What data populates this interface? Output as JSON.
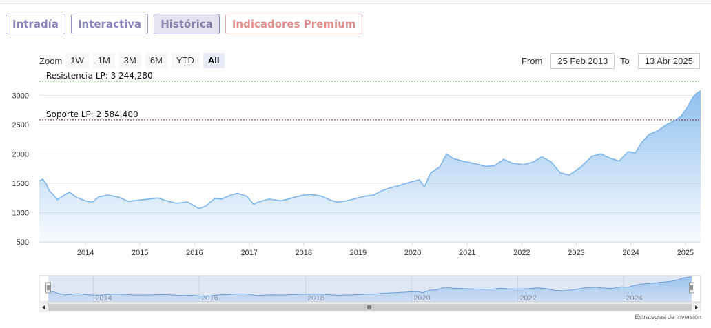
{
  "tabs": [
    {
      "label": "Intradía",
      "active": false
    },
    {
      "label": "Interactiva",
      "active": false
    },
    {
      "label": "Histórica",
      "active": true
    },
    {
      "label": "Indicadores Premium",
      "active": false
    }
  ],
  "zoom": {
    "label": "Zoom",
    "buttons": [
      "1W",
      "1M",
      "3M",
      "6M",
      "YTD",
      "All"
    ],
    "active": "All"
  },
  "range": {
    "from_label": "From",
    "from_value": "25 Feb 2013",
    "to_label": "To",
    "to_value": "13 Abr 2025"
  },
  "credit": "Estrategias de Inversión",
  "colors": {
    "line": "#7cb5ec",
    "resistance": "#2e8b2e",
    "support": "#8b1a1a",
    "tab_accent": "#8a85bb",
    "premium": "#e28e8e"
  },
  "chart_data": {
    "type": "area",
    "ylim": [
      500,
      3300
    ],
    "yticks": [
      500,
      1000,
      1500,
      2000,
      2500,
      3000
    ],
    "xticks": [
      "2014",
      "2015",
      "2016",
      "2017",
      "2018",
      "2019",
      "2020",
      "2021",
      "2022",
      "2023",
      "2024",
      "2025"
    ],
    "navigator_ticks": [
      "2014",
      "2016",
      "2018",
      "2020",
      "2022",
      "2024"
    ],
    "x_start": "2013-02-25",
    "x_end": "2025-04-13",
    "plot_lines": [
      {
        "label": "Resistencia LP: 3 244,280",
        "value": 3244.28
      },
      {
        "label": "Soporte LP: 2 584,400",
        "value": 2584.4
      }
    ],
    "series": [
      {
        "values": [
          [
            "2013-02-25",
            1540
          ],
          [
            "2013-03-20",
            1570
          ],
          [
            "2013-04-15",
            1480
          ],
          [
            "2013-05-01",
            1380
          ],
          [
            "2013-06-01",
            1300
          ],
          [
            "2013-06-25",
            1220
          ],
          [
            "2013-08-01",
            1280
          ],
          [
            "2013-09-15",
            1350
          ],
          [
            "2013-11-01",
            1260
          ],
          [
            "2014-01-01",
            1200
          ],
          [
            "2014-02-15",
            1180
          ],
          [
            "2014-04-01",
            1270
          ],
          [
            "2014-06-01",
            1300
          ],
          [
            "2014-08-15",
            1260
          ],
          [
            "2014-10-15",
            1190
          ],
          [
            "2014-12-15",
            1210
          ],
          [
            "2015-03-01",
            1230
          ],
          [
            "2015-05-01",
            1250
          ],
          [
            "2015-07-01",
            1200
          ],
          [
            "2015-09-01",
            1160
          ],
          [
            "2015-11-15",
            1180
          ],
          [
            "2016-02-01",
            1070
          ],
          [
            "2016-03-15",
            1110
          ],
          [
            "2016-05-15",
            1240
          ],
          [
            "2016-07-01",
            1230
          ],
          [
            "2016-09-01",
            1300
          ],
          [
            "2016-10-15",
            1330
          ],
          [
            "2016-12-15",
            1280
          ],
          [
            "2017-02-01",
            1140
          ],
          [
            "2017-03-01",
            1180
          ],
          [
            "2017-05-15",
            1230
          ],
          [
            "2017-08-01",
            1200
          ],
          [
            "2017-10-15",
            1250
          ],
          [
            "2017-12-15",
            1290
          ],
          [
            "2018-02-15",
            1310
          ],
          [
            "2018-05-01",
            1280
          ],
          [
            "2018-07-01",
            1210
          ],
          [
            "2018-08-15",
            1180
          ],
          [
            "2018-10-15",
            1200
          ],
          [
            "2018-12-15",
            1240
          ],
          [
            "2019-02-15",
            1280
          ],
          [
            "2019-04-15",
            1300
          ],
          [
            "2019-06-15",
            1380
          ],
          [
            "2019-08-01",
            1420
          ],
          [
            "2019-10-01",
            1460
          ],
          [
            "2019-12-15",
            1520
          ],
          [
            "2020-02-15",
            1560
          ],
          [
            "2020-03-20",
            1440
          ],
          [
            "2020-05-01",
            1680
          ],
          [
            "2020-07-01",
            1780
          ],
          [
            "2020-08-15",
            2000
          ],
          [
            "2020-10-01",
            1920
          ],
          [
            "2020-12-01",
            1880
          ],
          [
            "2021-03-01",
            1830
          ],
          [
            "2021-05-01",
            1790
          ],
          [
            "2021-07-01",
            1800
          ],
          [
            "2021-09-01",
            1910
          ],
          [
            "2021-11-01",
            1840
          ],
          [
            "2022-01-15",
            1820
          ],
          [
            "2022-03-15",
            1860
          ],
          [
            "2022-05-15",
            1950
          ],
          [
            "2022-07-15",
            1870
          ],
          [
            "2022-09-15",
            1680
          ],
          [
            "2022-11-15",
            1640
          ],
          [
            "2023-02-01",
            1780
          ],
          [
            "2023-04-15",
            1960
          ],
          [
            "2023-06-15",
            2000
          ],
          [
            "2023-08-15",
            1930
          ],
          [
            "2023-10-15",
            1880
          ],
          [
            "2023-12-15",
            2040
          ],
          [
            "2024-02-01",
            2020
          ],
          [
            "2024-03-15",
            2200
          ],
          [
            "2024-05-01",
            2330
          ],
          [
            "2024-07-01",
            2400
          ],
          [
            "2024-09-01",
            2510
          ],
          [
            "2024-10-15",
            2560
          ],
          [
            "2024-12-01",
            2640
          ],
          [
            "2025-01-15",
            2800
          ],
          [
            "2025-02-15",
            2950
          ],
          [
            "2025-03-15",
            3030
          ],
          [
            "2025-04-13",
            3080
          ]
        ]
      }
    ]
  }
}
